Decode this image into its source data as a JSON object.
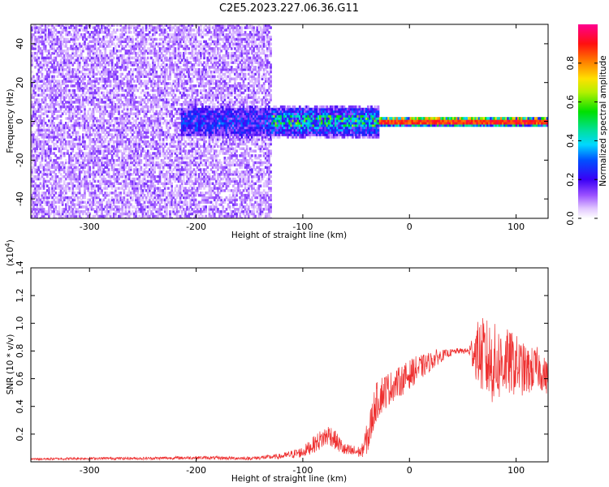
{
  "title": "C2E5.2023.227.06.36.G11",
  "chart_data": [
    {
      "type": "heatmap",
      "xlabel": "Height of straight line (km)",
      "ylabel": "Frequency (Hz)",
      "xlim": [
        -355,
        130
      ],
      "ylim": [
        -50,
        50
      ],
      "xticks": [
        -300,
        -200,
        -100,
        0,
        100
      ],
      "yticks": [
        -40,
        -20,
        0,
        20,
        40
      ],
      "colorbar": {
        "label": "Normalized spectral amplitude",
        "ticks": [
          0.0,
          0.2,
          0.4,
          0.6,
          0.8
        ],
        "range": [
          0,
          1
        ],
        "colormap": "rainbow"
      },
      "grid": false,
      "features": [
        {
          "x_range": [
            -355,
            -130
          ],
          "freq_halfwidth": 50,
          "amplitude": 0.1
        },
        {
          "x_range": [
            -215,
            -130
          ],
          "freq_halfwidth": 10,
          "amplitude": 0.22
        },
        {
          "x_range": [
            -130,
            -30
          ],
          "freq_halfwidth": 8,
          "amplitude": 0.3
        },
        {
          "x_range": [
            -30,
            130
          ],
          "freq_halfwidth": 2,
          "amplitude": 0.85
        }
      ]
    },
    {
      "type": "line",
      "xlabel": "Height of straight line (km)",
      "ylabel": "SNR (10 * v/v)",
      "y_scale_label": "(x10",
      "y_scale_exp": "4",
      "y_scale_close": ")",
      "xlim": [
        -355,
        130
      ],
      "ylim": [
        0,
        1.4
      ],
      "xticks": [
        -300,
        -200,
        -100,
        0,
        100
      ],
      "yticks": [
        0.2,
        0.4,
        0.6,
        0.8,
        1.0,
        1.2,
        1.4
      ],
      "color": "#ee3030",
      "grid": false,
      "x": [
        -355,
        -300,
        -250,
        -200,
        -150,
        -120,
        -100,
        -85,
        -75,
        -60,
        -45,
        -38,
        -32,
        -25,
        -15,
        -5,
        5,
        15,
        25,
        35,
        45,
        55,
        62,
        70,
        80,
        90,
        100,
        110,
        120,
        130
      ],
      "y": [
        0.02,
        0.025,
        0.025,
        0.03,
        0.025,
        0.04,
        0.07,
        0.15,
        0.2,
        0.08,
        0.07,
        0.2,
        0.42,
        0.5,
        0.55,
        0.6,
        0.66,
        0.7,
        0.75,
        0.78,
        0.8,
        0.8,
        0.8,
        0.75,
        0.7,
        0.72,
        0.7,
        0.65,
        0.68,
        0.6
      ],
      "spread": [
        0.008,
        0.01,
        0.01,
        0.012,
        0.012,
        0.02,
        0.04,
        0.07,
        0.08,
        0.05,
        0.04,
        0.14,
        0.14,
        0.14,
        0.11,
        0.11,
        0.1,
        0.08,
        0.06,
        0.03,
        0.02,
        0.02,
        0.2,
        0.3,
        0.3,
        0.25,
        0.22,
        0.18,
        0.15,
        0.12
      ]
    }
  ]
}
